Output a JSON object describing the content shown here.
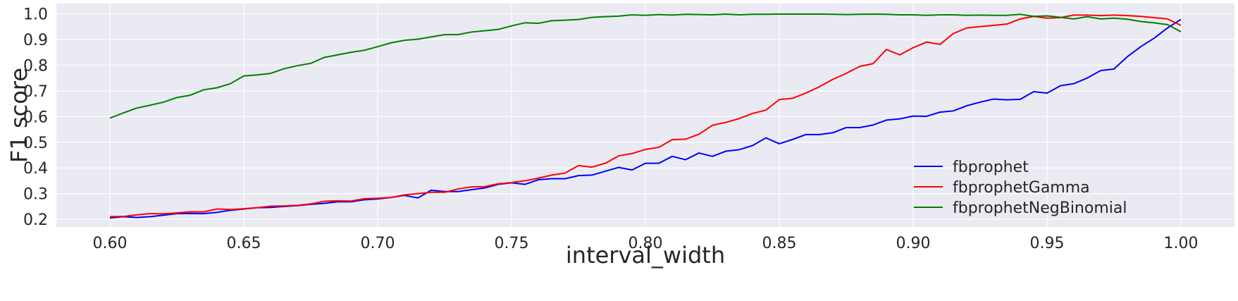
{
  "chart_data": {
    "type": "line",
    "title": "",
    "xlabel": "interval_width",
    "ylabel": "F1 score",
    "xlim": [
      0.58,
      1.02
    ],
    "ylim": [
      0.17,
      1.04
    ],
    "xticks": [
      0.6,
      0.65,
      0.7,
      0.75,
      0.8,
      0.85,
      0.9,
      0.95,
      1.0
    ],
    "xtick_labels": [
      "0.60",
      "0.65",
      "0.70",
      "0.75",
      "0.80",
      "0.85",
      "0.90",
      "0.95",
      "1.00"
    ],
    "yticks": [
      0.2,
      0.3,
      0.4,
      0.5,
      0.6,
      0.7,
      0.8,
      0.9,
      1.0
    ],
    "ytick_labels": [
      "0.2",
      "0.3",
      "0.4",
      "0.5",
      "0.6",
      "0.7",
      "0.8",
      "0.9",
      "1.0"
    ],
    "grid": true,
    "legend_position": "lower-right",
    "background": "#eaeaf2",
    "x": [
      0.6,
      0.605,
      0.61,
      0.615,
      0.62,
      0.625,
      0.63,
      0.635,
      0.64,
      0.645,
      0.65,
      0.655,
      0.66,
      0.665,
      0.67,
      0.675,
      0.68,
      0.685,
      0.69,
      0.695,
      0.7,
      0.705,
      0.71,
      0.715,
      0.72,
      0.725,
      0.73,
      0.735,
      0.74,
      0.745,
      0.75,
      0.755,
      0.76,
      0.765,
      0.77,
      0.775,
      0.78,
      0.785,
      0.79,
      0.795,
      0.8,
      0.805,
      0.81,
      0.815,
      0.82,
      0.825,
      0.83,
      0.835,
      0.84,
      0.845,
      0.85,
      0.855,
      0.86,
      0.865,
      0.87,
      0.875,
      0.88,
      0.885,
      0.89,
      0.895,
      0.9,
      0.905,
      0.91,
      0.915,
      0.92,
      0.925,
      0.93,
      0.935,
      0.94,
      0.945,
      0.95,
      0.955,
      0.96,
      0.965,
      0.97,
      0.975,
      0.98,
      0.985,
      0.99,
      0.995,
      1.0
    ],
    "series": [
      {
        "name": "fbprophet",
        "color": "#0000ff",
        "values": [
          0.205,
          0.21,
          0.207,
          0.21,
          0.216,
          0.222,
          0.223,
          0.222,
          0.227,
          0.235,
          0.24,
          0.245,
          0.246,
          0.25,
          0.253,
          0.258,
          0.262,
          0.268,
          0.268,
          0.276,
          0.279,
          0.285,
          0.293,
          0.283,
          0.313,
          0.308,
          0.308,
          0.315,
          0.322,
          0.336,
          0.342,
          0.336,
          0.354,
          0.358,
          0.358,
          0.37,
          0.372,
          0.387,
          0.402,
          0.392,
          0.418,
          0.418,
          0.445,
          0.432,
          0.458,
          0.445,
          0.465,
          0.471,
          0.487,
          0.517,
          0.494,
          0.511,
          0.53,
          0.53,
          0.537,
          0.557,
          0.557,
          0.567,
          0.586,
          0.591,
          0.602,
          0.601,
          0.617,
          0.622,
          0.642,
          0.656,
          0.668,
          0.665,
          0.667,
          0.697,
          0.691,
          0.72,
          0.728,
          0.75,
          0.779,
          0.785,
          0.833,
          0.872,
          0.905,
          0.945,
          0.978
        ]
      },
      {
        "name": "fbprophetGamma",
        "color": "#ff0000",
        "values": [
          0.21,
          0.211,
          0.217,
          0.222,
          0.221,
          0.225,
          0.229,
          0.229,
          0.24,
          0.238,
          0.241,
          0.245,
          0.251,
          0.252,
          0.254,
          0.26,
          0.27,
          0.272,
          0.271,
          0.28,
          0.282,
          0.285,
          0.295,
          0.3,
          0.305,
          0.305,
          0.318,
          0.326,
          0.327,
          0.338,
          0.343,
          0.35,
          0.36,
          0.372,
          0.38,
          0.409,
          0.403,
          0.418,
          0.447,
          0.456,
          0.472,
          0.48,
          0.51,
          0.512,
          0.531,
          0.566,
          0.577,
          0.592,
          0.612,
          0.625,
          0.666,
          0.671,
          0.692,
          0.716,
          0.745,
          0.768,
          0.795,
          0.806,
          0.861,
          0.84,
          0.868,
          0.89,
          0.881,
          0.923,
          0.945,
          0.95,
          0.955,
          0.96,
          0.98,
          0.99,
          0.983,
          0.985,
          0.995,
          0.995,
          0.993,
          0.995,
          0.993,
          0.99,
          0.985,
          0.98,
          0.955
        ]
      },
      {
        "name": "fbprophetNegBinomial",
        "color": "#008000",
        "values": [
          0.594,
          0.614,
          0.633,
          0.644,
          0.656,
          0.674,
          0.683,
          0.704,
          0.712,
          0.728,
          0.758,
          0.762,
          0.768,
          0.786,
          0.798,
          0.807,
          0.83,
          0.84,
          0.85,
          0.858,
          0.872,
          0.887,
          0.897,
          0.901,
          0.91,
          0.919,
          0.919,
          0.929,
          0.934,
          0.939,
          0.953,
          0.965,
          0.963,
          0.973,
          0.975,
          0.978,
          0.986,
          0.989,
          0.991,
          0.996,
          0.994,
          0.997,
          0.995,
          0.998,
          0.997,
          0.996,
          0.999,
          0.996,
          0.998,
          0.998,
          0.999,
          0.999,
          0.999,
          0.999,
          0.998,
          0.997,
          0.998,
          0.999,
          0.998,
          0.996,
          0.996,
          0.994,
          0.996,
          0.996,
          0.994,
          0.995,
          0.994,
          0.994,
          0.998,
          0.99,
          0.992,
          0.986,
          0.98,
          0.989,
          0.98,
          0.983,
          0.979,
          0.97,
          0.965,
          0.958,
          0.93
        ]
      }
    ]
  }
}
